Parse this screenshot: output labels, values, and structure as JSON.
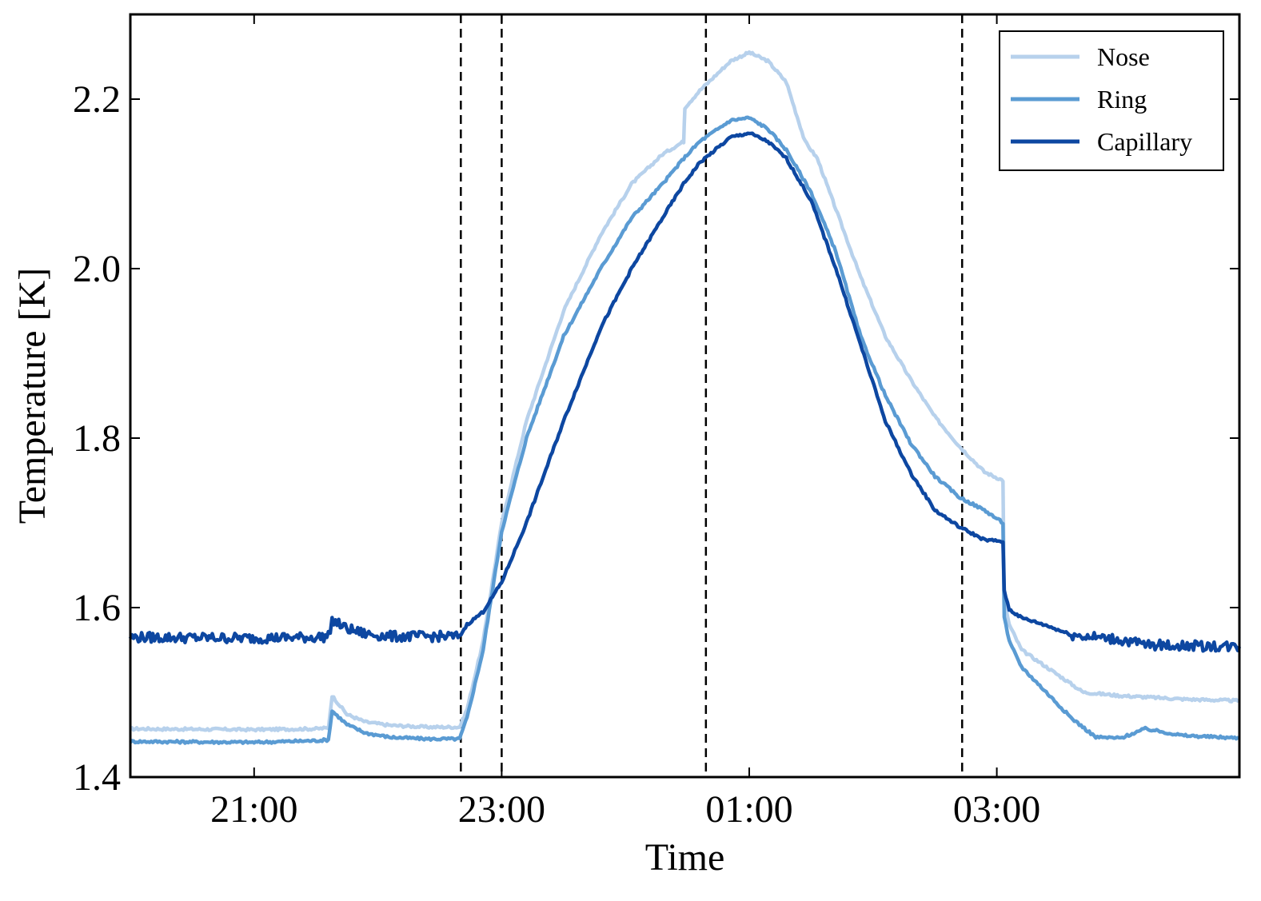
{
  "chart_data": {
    "type": "line",
    "title": "",
    "xlabel": "Time",
    "ylabel": "Temperature [K]",
    "x_unit": "hours (clock time, wrapping past midnight)",
    "xlim": [
      20.0,
      28.96
    ],
    "ylim": [
      1.4,
      2.3
    ],
    "x_ticks": [
      {
        "value": 21,
        "label": "21:00"
      },
      {
        "value": 23,
        "label": "23:00"
      },
      {
        "value": 25,
        "label": "01:00"
      },
      {
        "value": 27,
        "label": "03:00"
      }
    ],
    "y_ticks": [
      {
        "value": 1.4,
        "label": "1.4"
      },
      {
        "value": 1.6,
        "label": "1.6"
      },
      {
        "value": 1.8,
        "label": "1.8"
      },
      {
        "value": 2.0,
        "label": "2.0"
      },
      {
        "value": 2.2,
        "label": "2.2"
      }
    ],
    "vlines": [
      22.67,
      23.0,
      24.65,
      26.72
    ],
    "legend_position": "top-right",
    "grid": false,
    "series": [
      {
        "name": "Nose",
        "color": "#b7d1ec",
        "points": [
          [
            20.0,
            1.457
          ],
          [
            21.0,
            1.456
          ],
          [
            21.5,
            1.457
          ],
          [
            21.6,
            1.458
          ],
          [
            21.63,
            1.496
          ],
          [
            21.75,
            1.474
          ],
          [
            21.9,
            1.465
          ],
          [
            22.1,
            1.461
          ],
          [
            22.4,
            1.459
          ],
          [
            22.66,
            1.459
          ],
          [
            22.72,
            1.48
          ],
          [
            22.85,
            1.56
          ],
          [
            23.0,
            1.7
          ],
          [
            23.2,
            1.82
          ],
          [
            23.5,
            1.95
          ],
          [
            23.8,
            2.04
          ],
          [
            24.05,
            2.1
          ],
          [
            24.3,
            2.135
          ],
          [
            24.47,
            2.15
          ],
          [
            24.48,
            2.19
          ],
          [
            24.6,
            2.21
          ],
          [
            24.85,
            2.245
          ],
          [
            25.0,
            2.255
          ],
          [
            25.15,
            2.245
          ],
          [
            25.3,
            2.22
          ],
          [
            25.45,
            2.15
          ],
          [
            25.55,
            2.13
          ],
          [
            25.7,
            2.07
          ],
          [
            25.9,
            1.99
          ],
          [
            26.1,
            1.92
          ],
          [
            26.3,
            1.87
          ],
          [
            26.5,
            1.825
          ],
          [
            26.7,
            1.79
          ],
          [
            26.9,
            1.76
          ],
          [
            27.05,
            1.75
          ],
          [
            27.06,
            1.61
          ],
          [
            27.1,
            1.58
          ],
          [
            27.2,
            1.55
          ],
          [
            27.4,
            1.53
          ],
          [
            27.7,
            1.5
          ],
          [
            28.0,
            1.496
          ],
          [
            28.5,
            1.492
          ],
          [
            28.96,
            1.49
          ]
        ]
      },
      {
        "name": "Ring",
        "color": "#5a9bd3",
        "points": [
          [
            20.0,
            1.442
          ],
          [
            21.0,
            1.441
          ],
          [
            21.5,
            1.443
          ],
          [
            21.6,
            1.444
          ],
          [
            21.63,
            1.478
          ],
          [
            21.75,
            1.462
          ],
          [
            21.9,
            1.452
          ],
          [
            22.1,
            1.447
          ],
          [
            22.4,
            1.445
          ],
          [
            22.66,
            1.445
          ],
          [
            22.72,
            1.47
          ],
          [
            22.85,
            1.55
          ],
          [
            23.0,
            1.69
          ],
          [
            23.2,
            1.8
          ],
          [
            23.5,
            1.92
          ],
          [
            23.8,
            2.0
          ],
          [
            24.05,
            2.06
          ],
          [
            24.3,
            2.1
          ],
          [
            24.47,
            2.13
          ],
          [
            24.6,
            2.15
          ],
          [
            24.85,
            2.175
          ],
          [
            25.0,
            2.178
          ],
          [
            25.15,
            2.165
          ],
          [
            25.3,
            2.14
          ],
          [
            25.5,
            2.09
          ],
          [
            25.7,
            2.02
          ],
          [
            25.9,
            1.92
          ],
          [
            26.1,
            1.85
          ],
          [
            26.3,
            1.795
          ],
          [
            26.5,
            1.755
          ],
          [
            26.7,
            1.73
          ],
          [
            26.9,
            1.715
          ],
          [
            27.05,
            1.7
          ],
          [
            27.06,
            1.59
          ],
          [
            27.1,
            1.56
          ],
          [
            27.2,
            1.53
          ],
          [
            27.4,
            1.5
          ],
          [
            27.6,
            1.47
          ],
          [
            27.8,
            1.447
          ],
          [
            28.0,
            1.446
          ],
          [
            28.2,
            1.457
          ],
          [
            28.5,
            1.449
          ],
          [
            28.96,
            1.446
          ]
        ]
      },
      {
        "name": "Capillary",
        "color": "#0d47a1",
        "points": [
          [
            20.0,
            1.565
          ],
          [
            21.0,
            1.564
          ],
          [
            21.5,
            1.565
          ],
          [
            21.6,
            1.566
          ],
          [
            21.63,
            1.585
          ],
          [
            21.75,
            1.575
          ],
          [
            21.9,
            1.569
          ],
          [
            22.1,
            1.566
          ],
          [
            22.4,
            1.566
          ],
          [
            22.66,
            1.566
          ],
          [
            22.72,
            1.58
          ],
          [
            22.85,
            1.595
          ],
          [
            23.0,
            1.63
          ],
          [
            23.2,
            1.7
          ],
          [
            23.5,
            1.82
          ],
          [
            23.8,
            1.93
          ],
          [
            24.05,
            2.0
          ],
          [
            24.3,
            2.06
          ],
          [
            24.47,
            2.1
          ],
          [
            24.6,
            2.125
          ],
          [
            24.85,
            2.155
          ],
          [
            25.0,
            2.16
          ],
          [
            25.15,
            2.15
          ],
          [
            25.3,
            2.13
          ],
          [
            25.5,
            2.08
          ],
          [
            25.7,
            2.0
          ],
          [
            25.9,
            1.91
          ],
          [
            26.1,
            1.82
          ],
          [
            26.3,
            1.76
          ],
          [
            26.5,
            1.715
          ],
          [
            26.7,
            1.695
          ],
          [
            26.9,
            1.68
          ],
          [
            27.05,
            1.678
          ],
          [
            27.06,
            1.62
          ],
          [
            27.1,
            1.598
          ],
          [
            27.2,
            1.588
          ],
          [
            27.4,
            1.579
          ],
          [
            27.6,
            1.568
          ],
          [
            27.8,
            1.565
          ],
          [
            28.0,
            1.562
          ],
          [
            28.2,
            1.556
          ],
          [
            28.5,
            1.555
          ],
          [
            28.96,
            1.554
          ]
        ]
      }
    ]
  }
}
